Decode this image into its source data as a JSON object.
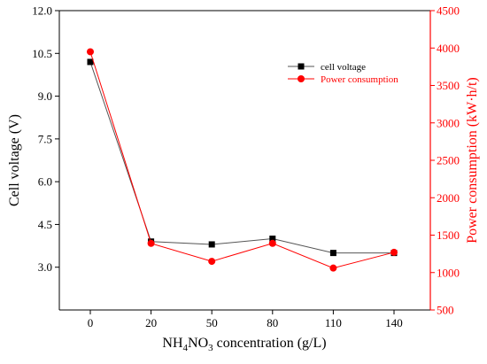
{
  "chart_data": {
    "type": "line",
    "x_ticks": [
      "0",
      "20",
      "50",
      "80",
      "110",
      "140"
    ],
    "xlabel": {
      "prefix": "NH",
      "sub1": "4",
      "mid": "NO",
      "sub2": "3",
      "suffix": " concentration  (g/L)"
    },
    "ylabel_left": "Cell voltage  (V)",
    "ylabel_right": "Power consumption  (kW·h/t)",
    "y_left": {
      "min": 1.5,
      "max": 12.0,
      "ticks": [
        "3.0",
        "4.5",
        "6.0",
        "7.5",
        "9.0",
        "10.5",
        "12.0"
      ]
    },
    "y_right": {
      "min": 500,
      "max": 4500,
      "ticks": [
        "500",
        "1000",
        "1500",
        "2000",
        "2500",
        "3000",
        "3500",
        "4000",
        "4500"
      ]
    },
    "series": [
      {
        "name": "cell voltage",
        "axis": "left",
        "color": "#000000",
        "marker": "square",
        "line_color": "#555555",
        "values": [
          10.2,
          3.9,
          3.8,
          4.0,
          3.5,
          3.5
        ]
      },
      {
        "name": "Power consumption",
        "axis": "right",
        "color": "#ff0000",
        "marker": "circle",
        "line_color": "#ff0000",
        "values": [
          3950,
          1390,
          1150,
          1390,
          1060,
          1270
        ]
      }
    ],
    "legend": "top-right",
    "grid": false
  }
}
